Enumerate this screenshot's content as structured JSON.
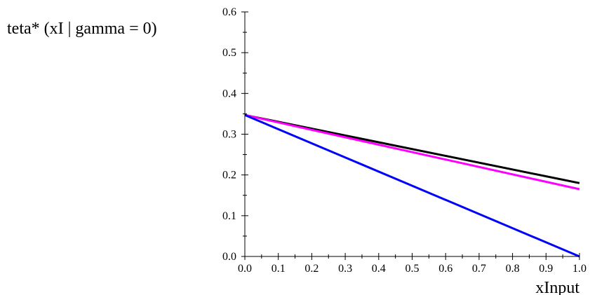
{
  "chart_data": {
    "type": "line",
    "ylabel": "teta* (xI | gamma = 0)",
    "xlabel": "xInput",
    "xlim": [
      0.0,
      1.0
    ],
    "ylim": [
      0.0,
      0.6
    ],
    "x_ticks": [
      "0.0",
      "0.1",
      "0.2",
      "0.3",
      "0.4",
      "0.5",
      "0.6",
      "0.7",
      "0.8",
      "0.9",
      "1.0"
    ],
    "y_ticks": [
      "0.0",
      "0.1",
      "0.2",
      "0.3",
      "0.4",
      "0.5",
      "0.6"
    ],
    "grid": false,
    "series": [
      {
        "color": "#000000",
        "x": [
          0.0,
          1.0
        ],
        "y": [
          0.347,
          0.18
        ]
      },
      {
        "color": "#ff00ff",
        "x": [
          0.0,
          1.0
        ],
        "y": [
          0.347,
          0.165
        ]
      },
      {
        "color": "#0000ff",
        "x": [
          0.0,
          1.0
        ],
        "y": [
          0.347,
          0.0
        ]
      }
    ]
  }
}
